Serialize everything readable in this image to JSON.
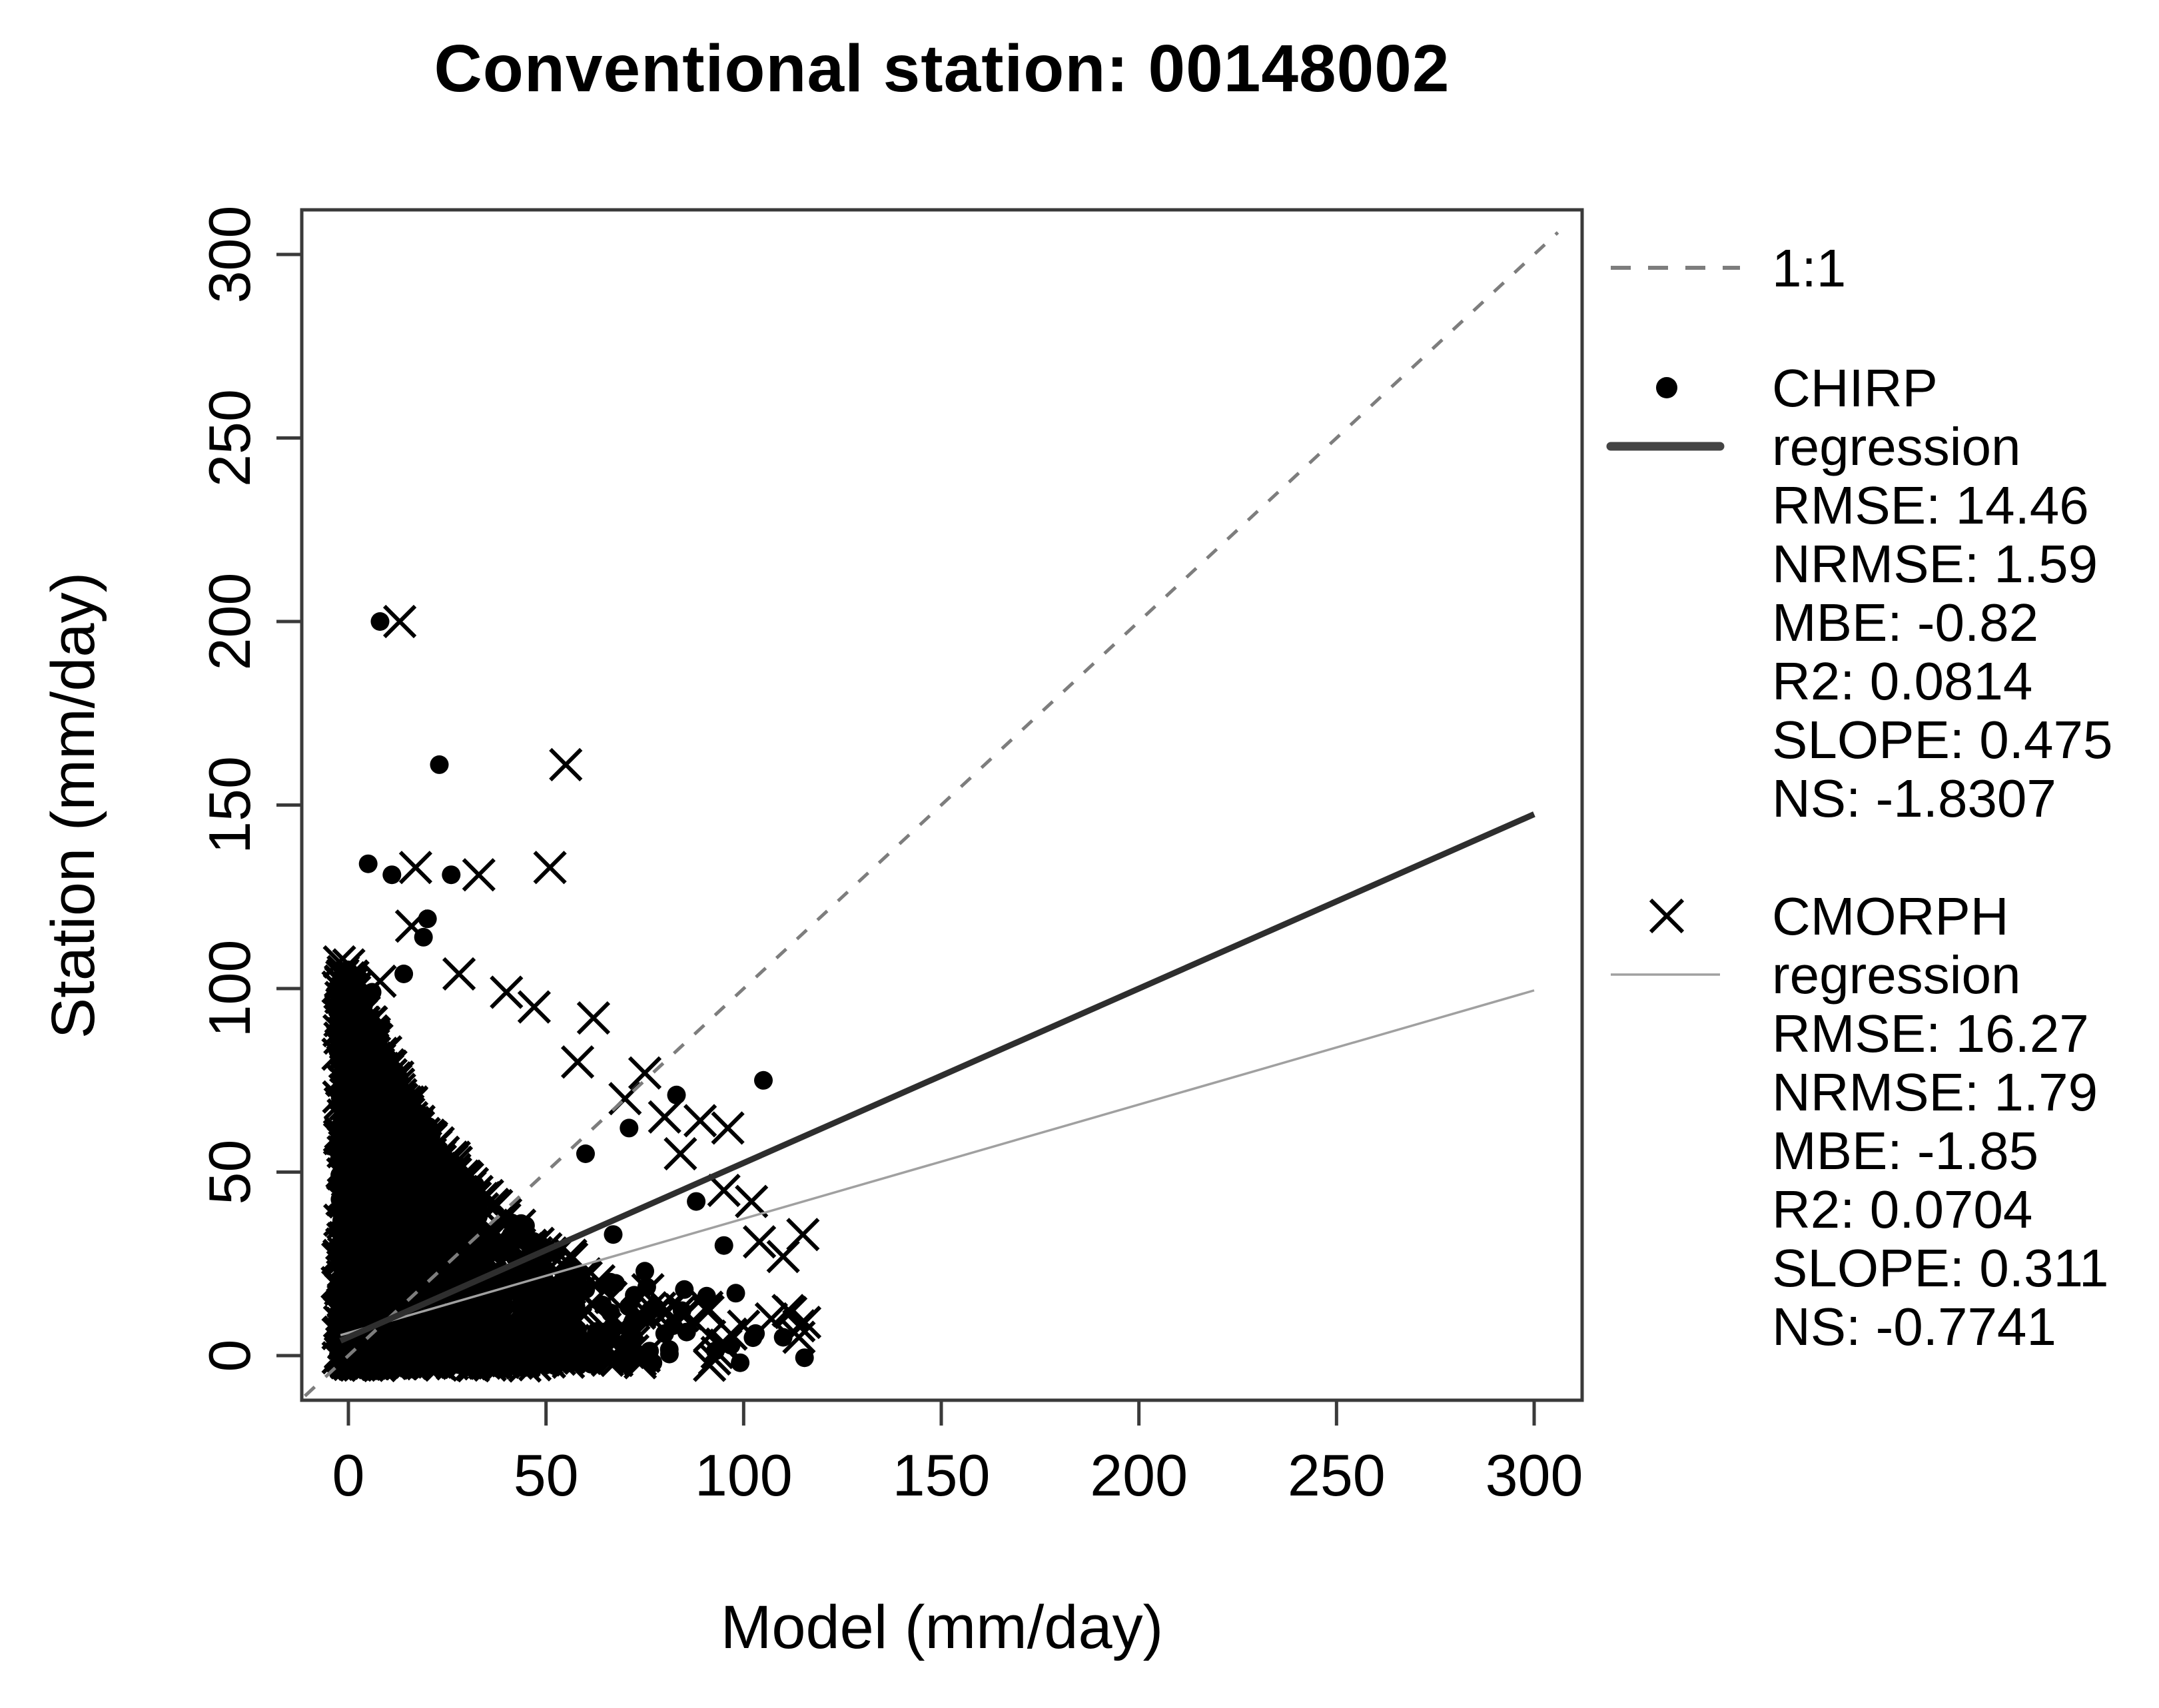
{
  "title": "Conventional station: 00148002",
  "chart_data": {
    "type": "scatter",
    "title": "Conventional station: 00148002",
    "xlabel": "Model (mm/day)",
    "ylabel": "Station (mm/day)",
    "xlim": [
      -12,
      312
    ],
    "ylim": [
      -12,
      312
    ],
    "xticks": [
      0,
      50,
      100,
      150,
      200,
      250,
      300
    ],
    "yticks": [
      0,
      50,
      100,
      150,
      200,
      250,
      300
    ],
    "grid": false,
    "legend_position": "right",
    "reference_line": {
      "name": "1:1",
      "slope": 1,
      "intercept": 0,
      "style": "dashed"
    },
    "series": [
      {
        "name": "CHIRP",
        "marker": "dot",
        "regression": {
          "slope": 0.475,
          "intercept": 5.0,
          "x_range": [
            0,
            300
          ],
          "style": "thick-dark"
        },
        "stats": {
          "RMSE": 14.46,
          "NRMSE": 1.59,
          "MBE": -0.82,
          "R2": 0.0814,
          "SLOPE": 0.475,
          "NS": -1.8307
        },
        "visible_outliers": [
          [
            8,
            200
          ],
          [
            23,
            161
          ],
          [
            5,
            134
          ],
          [
            11,
            131
          ],
          [
            26,
            131
          ],
          [
            20,
            119
          ],
          [
            19,
            114
          ],
          [
            14,
            104
          ],
          [
            6,
            99
          ],
          [
            105,
            75
          ],
          [
            83,
            71
          ],
          [
            71,
            62
          ],
          [
            60,
            55
          ],
          [
            88,
            42
          ],
          [
            67,
            33
          ],
          [
            95,
            30
          ],
          [
            75,
            23
          ],
          [
            85,
            18
          ],
          [
            98,
            17
          ],
          [
            103,
            6
          ],
          [
            110,
            5
          ]
        ]
      },
      {
        "name": "CMORPH",
        "marker": "cross",
        "regression": {
          "slope": 0.311,
          "intercept": 6.2,
          "x_range": [
            0,
            300
          ],
          "style": "thin-gray"
        },
        "stats": {
          "RMSE": 16.27,
          "NRMSE": 1.79,
          "MBE": -1.85,
          "R2": 0.0704,
          "SLOPE": 0.311,
          "NS": -0.7741
        },
        "visible_outliers": [
          [
            13,
            200
          ],
          [
            55,
            161
          ],
          [
            17,
            133
          ],
          [
            33,
            131
          ],
          [
            51,
            133
          ],
          [
            16,
            117
          ],
          [
            28,
            104
          ],
          [
            8,
            102
          ],
          [
            62,
            92
          ],
          [
            58,
            80
          ],
          [
            75,
            77
          ],
          [
            70,
            70
          ],
          [
            80,
            65
          ],
          [
            89,
            64
          ],
          [
            96,
            62
          ],
          [
            84,
            55
          ],
          [
            47,
            95
          ],
          [
            40,
            99
          ],
          [
            95,
            45
          ],
          [
            102,
            42
          ],
          [
            104,
            31
          ],
          [
            115,
            33
          ],
          [
            110,
            27
          ],
          [
            91,
            12
          ],
          [
            100,
            8
          ],
          [
            107,
            10
          ],
          [
            114,
            5
          ]
        ]
      }
    ],
    "dense_cluster": {
      "description": "very dense black mass of dots and crosses in lower-left, triangular decay",
      "n_points": 3600,
      "seed": 42,
      "x_exponential_scale": 17,
      "x_max": 119,
      "y_boundary": "10 + 98*exp(-x/34)",
      "y_power": 1.7
    },
    "colors": {
      "points": "#000000",
      "box": "#3a3a3a",
      "tick": "#3a3a3a",
      "tick_label": "#000000",
      "dashed_1to1": "#7d7d7d",
      "chirp_regression": "#2e2e2e",
      "cmorph_regression": "#a0a0a0"
    }
  },
  "legend": {
    "entries": [
      {
        "id": "one-to-one",
        "symbol": "dashed-line",
        "lines": [
          "1:1"
        ]
      },
      {
        "id": "chirp",
        "symbol": "filled-dot",
        "line_sample": "thick-dark",
        "lines": [
          "CHIRP",
          "regression",
          "RMSE: 14.46",
          "NRMSE: 1.59",
          "MBE: -0.82",
          "R2: 0.0814",
          "SLOPE: 0.475",
          "NS: -1.8307"
        ]
      },
      {
        "id": "cmorph",
        "symbol": "x-mark",
        "line_sample": "thin-gray",
        "lines": [
          "CMORPH",
          "regression",
          "RMSE: 16.27",
          "NRMSE: 1.79",
          "MBE: -1.85",
          "R2: 0.0704",
          "SLOPE: 0.311",
          "NS: -0.7741"
        ]
      }
    ]
  }
}
